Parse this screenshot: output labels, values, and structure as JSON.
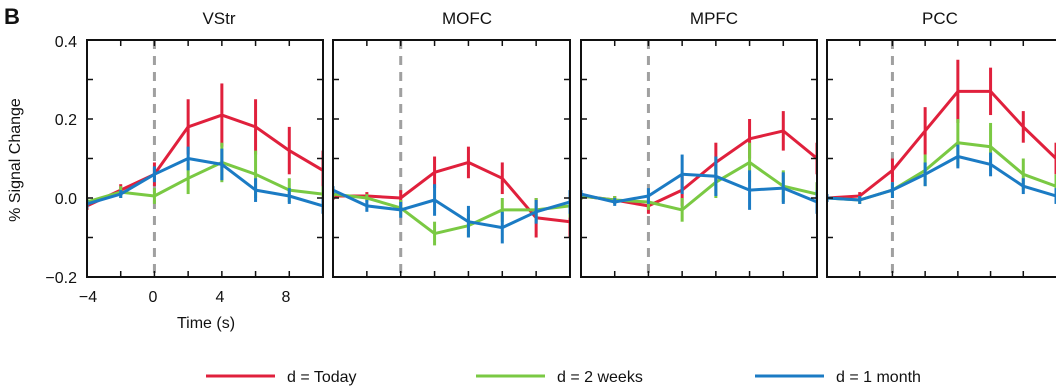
{
  "figure": {
    "panel_letter": "B",
    "ylabel": "% Signal Change",
    "xlabel": "Time (s)",
    "yticks": [
      "0.4",
      "0.2",
      "0.0",
      "−0.2"
    ],
    "xticks": [
      "−4",
      "0",
      "4",
      "8"
    ]
  },
  "legend": [
    {
      "label": "d  = Today",
      "color": "#e0203c"
    },
    {
      "label": "d  = 2 weeks",
      "color": "#7ac943"
    },
    {
      "label": "d  = 1 month",
      "color": "#1b7bc4"
    }
  ],
  "chart_data": [
    {
      "type": "line",
      "title": "VStr",
      "xlabel": "Time (s)",
      "ylabel": "% Signal Change",
      "xlim": [
        -4,
        10
      ],
      "ylim": [
        -0.2,
        0.4
      ],
      "x": [
        -4,
        -2,
        0,
        2,
        4,
        6,
        8,
        10
      ],
      "series": [
        {
          "name": "d  = Today",
          "color": "#e0203c",
          "values": [
            -0.02,
            0.02,
            0.06,
            0.18,
            0.21,
            0.18,
            0.12,
            0.07
          ],
          "errors": [
            0.01,
            0.015,
            0.03,
            0.07,
            0.08,
            0.07,
            0.06,
            0.05
          ]
        },
        {
          "name": "d  = 2 weeks",
          "color": "#7ac943",
          "values": [
            -0.01,
            0.015,
            0.005,
            0.05,
            0.09,
            0.06,
            0.02,
            0.01
          ],
          "errors": [
            0.01,
            0.015,
            0.02,
            0.04,
            0.05,
            0.06,
            0.03,
            0.02
          ]
        },
        {
          "name": "d  = 1 month",
          "color": "#1b7bc4",
          "values": [
            -0.015,
            0.01,
            0.06,
            0.1,
            0.085,
            0.02,
            0.005,
            -0.02
          ],
          "errors": [
            0.01,
            0.01,
            0.02,
            0.03,
            0.04,
            0.03,
            0.02,
            0.02
          ]
        }
      ]
    },
    {
      "type": "line",
      "title": "MOFC",
      "xlim": [
        -4,
        10
      ],
      "ylim": [
        -0.2,
        0.4
      ],
      "x": [
        -4,
        -2,
        0,
        2,
        4,
        6,
        8,
        10
      ],
      "series": [
        {
          "name": "d  = Today",
          "color": "#e0203c",
          "values": [
            0.005,
            0.005,
            0.0,
            0.065,
            0.09,
            0.05,
            -0.05,
            -0.06
          ],
          "errors": [
            0.01,
            0.01,
            0.02,
            0.04,
            0.04,
            0.04,
            0.05,
            0.04
          ]
        },
        {
          "name": "d  = 2 weeks",
          "color": "#7ac943",
          "values": [
            0.01,
            0.0,
            -0.025,
            -0.09,
            -0.07,
            -0.03,
            -0.03,
            -0.02
          ],
          "errors": [
            0.01,
            0.01,
            0.02,
            0.03,
            0.03,
            0.03,
            0.03,
            0.03
          ]
        },
        {
          "name": "d  = 1 month",
          "color": "#1b7bc4",
          "values": [
            0.02,
            -0.02,
            -0.03,
            -0.005,
            -0.06,
            -0.075,
            -0.035,
            -0.01
          ],
          "errors": [
            0.01,
            0.015,
            0.02,
            0.04,
            0.04,
            0.04,
            0.03,
            0.03
          ]
        }
      ]
    },
    {
      "type": "line",
      "title": "MPFC",
      "xlim": [
        -4,
        10
      ],
      "ylim": [
        -0.2,
        0.4
      ],
      "x": [
        -4,
        -2,
        0,
        2,
        4,
        6,
        8,
        10
      ],
      "series": [
        {
          "name": "d  = Today",
          "color": "#e0203c",
          "values": [
            0.005,
            -0.005,
            -0.02,
            0.02,
            0.09,
            0.15,
            0.17,
            0.1
          ],
          "errors": [
            0.01,
            0.01,
            0.02,
            0.04,
            0.05,
            0.05,
            0.05,
            0.04
          ]
        },
        {
          "name": "d  = 2 weeks",
          "color": "#7ac943",
          "values": [
            0.005,
            -0.005,
            -0.01,
            -0.03,
            0.04,
            0.09,
            0.03,
            0.01
          ],
          "errors": [
            0.01,
            0.01,
            0.02,
            0.03,
            0.04,
            0.05,
            0.04,
            0.03
          ]
        },
        {
          "name": "d  = 1 month",
          "color": "#1b7bc4",
          "values": [
            0.01,
            -0.01,
            0.005,
            0.06,
            0.055,
            0.02,
            0.025,
            -0.01
          ],
          "errors": [
            0.01,
            0.01,
            0.02,
            0.05,
            0.05,
            0.05,
            0.04,
            0.03
          ]
        }
      ]
    },
    {
      "type": "line",
      "title": "PCC",
      "xlim": [
        -4,
        10
      ],
      "ylim": [
        -0.2,
        0.4
      ],
      "x": [
        -4,
        -2,
        0,
        2,
        4,
        6,
        8,
        10
      ],
      "series": [
        {
          "name": "d  = Today",
          "color": "#e0203c",
          "values": [
            0.0,
            0.005,
            0.07,
            0.17,
            0.27,
            0.27,
            0.18,
            0.1
          ],
          "errors": [
            0.01,
            0.01,
            0.03,
            0.06,
            0.08,
            0.06,
            0.04,
            0.04
          ]
        },
        {
          "name": "d  = 2 weeks",
          "color": "#7ac943",
          "values": [
            0.0,
            -0.005,
            0.02,
            0.07,
            0.14,
            0.13,
            0.06,
            0.03
          ],
          "errors": [
            0.01,
            0.01,
            0.02,
            0.04,
            0.06,
            0.06,
            0.04,
            0.03
          ]
        },
        {
          "name": "d  = 1 month",
          "color": "#1b7bc4",
          "values": [
            0.0,
            -0.005,
            0.02,
            0.06,
            0.105,
            0.085,
            0.03,
            0.005
          ],
          "errors": [
            0.01,
            0.01,
            0.02,
            0.03,
            0.03,
            0.03,
            0.02,
            0.02
          ]
        }
      ]
    }
  ]
}
